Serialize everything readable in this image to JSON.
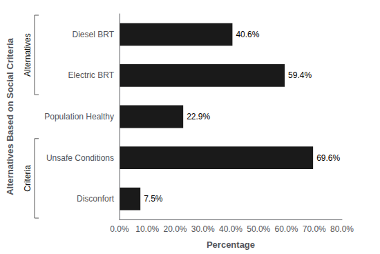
{
  "chart_data": {
    "type": "bar",
    "orientation": "horizontal",
    "categories": [
      "Diesel BRT",
      "Electric BRT",
      "Population Healthy",
      "Unsafe Conditions",
      "Disconfort"
    ],
    "values": [
      40.6,
      59.4,
      22.9,
      69.6,
      7.5
    ],
    "value_labels": [
      "40.6%",
      "59.4%",
      "22.9%",
      "69.6%",
      "7.5%"
    ],
    "data_labels": true,
    "color": "#1a1a1a",
    "xlabel": "Percentage",
    "ylabel": "Alternatives Based on Social Criteria",
    "xlim": [
      0,
      80
    ],
    "xticks": [
      {
        "value": 0,
        "label": "0.0%"
      },
      {
        "value": 10,
        "label": "10.0%"
      },
      {
        "value": 20,
        "label": "20.0%"
      },
      {
        "value": 30,
        "label": "30.0%"
      },
      {
        "value": 40,
        "label": "40.0%"
      },
      {
        "value": 50,
        "label": "50.0%"
      },
      {
        "value": 60,
        "label": "60.0%"
      },
      {
        "value": 70,
        "label": "70.0%"
      },
      {
        "value": 80,
        "label": "80.0%"
      }
    ],
    "annotations": [
      {
        "text": "Alternatives",
        "categories": [
          "Diesel BRT",
          "Electric BRT"
        ]
      },
      {
        "text": "Criteria",
        "categories": [
          "Unsafe Conditions",
          "Disconfort"
        ]
      }
    ],
    "grid": false
  }
}
